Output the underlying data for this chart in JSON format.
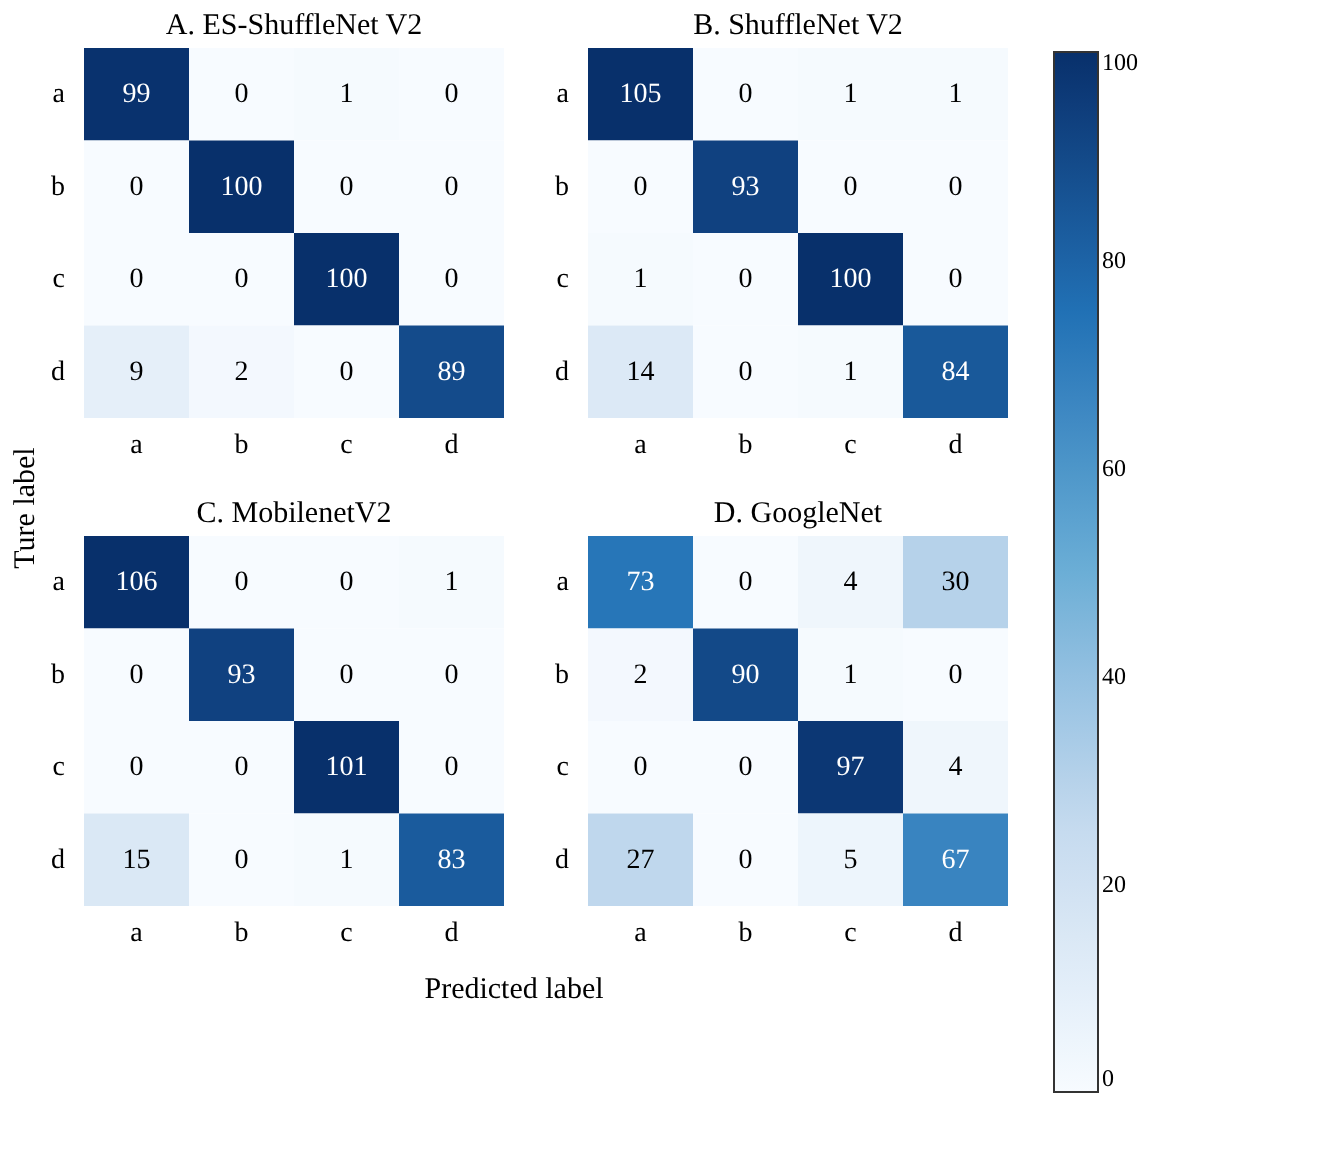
{
  "chart_data": [
    {
      "type": "heatmap",
      "title": "A. ES-ShuffleNet V2",
      "xlabel": "Predicted label",
      "ylabel": "Ture label",
      "categories": [
        "a",
        "b",
        "c",
        "d"
      ],
      "y_categories": [
        "a",
        "b",
        "c",
        "d"
      ],
      "cells": [
        [
          99,
          0,
          1,
          0
        ],
        [
          0,
          100,
          0,
          0
        ],
        [
          0,
          0,
          100,
          0
        ],
        [
          9,
          2,
          0,
          89
        ]
      ],
      "data_labels": true,
      "clim": [
        0,
        100
      ],
      "cticks": [
        0,
        20,
        40,
        60,
        80,
        100
      ]
    },
    {
      "type": "heatmap",
      "title": "B. ShuffleNet V2",
      "categories": [
        "a",
        "b",
        "c",
        "d"
      ],
      "y_categories": [
        "a",
        "b",
        "c",
        "d"
      ],
      "cells": [
        [
          105,
          0,
          1,
          1
        ],
        [
          0,
          93,
          0,
          0
        ],
        [
          1,
          0,
          100,
          0
        ],
        [
          14,
          0,
          1,
          84
        ]
      ],
      "data_labels": true
    },
    {
      "type": "heatmap",
      "title": "C. MobilenetV2",
      "categories": [
        "a",
        "b",
        "c",
        "d"
      ],
      "y_categories": [
        "a",
        "b",
        "c",
        "d"
      ],
      "cells": [
        [
          106,
          0,
          0,
          1
        ],
        [
          0,
          93,
          0,
          0
        ],
        [
          0,
          0,
          101,
          0
        ],
        [
          15,
          0,
          1,
          83
        ]
      ],
      "data_labels": true
    },
    {
      "type": "heatmap",
      "title": "D. GoogleNet",
      "categories": [
        "a",
        "b",
        "c",
        "d"
      ],
      "y_categories": [
        "a",
        "b",
        "c",
        "d"
      ],
      "cells": [
        [
          73,
          0,
          4,
          30
        ],
        [
          2,
          90,
          1,
          0
        ],
        [
          0,
          0,
          97,
          4
        ],
        [
          27,
          0,
          5,
          67
        ]
      ],
      "data_labels": true
    }
  ]
}
